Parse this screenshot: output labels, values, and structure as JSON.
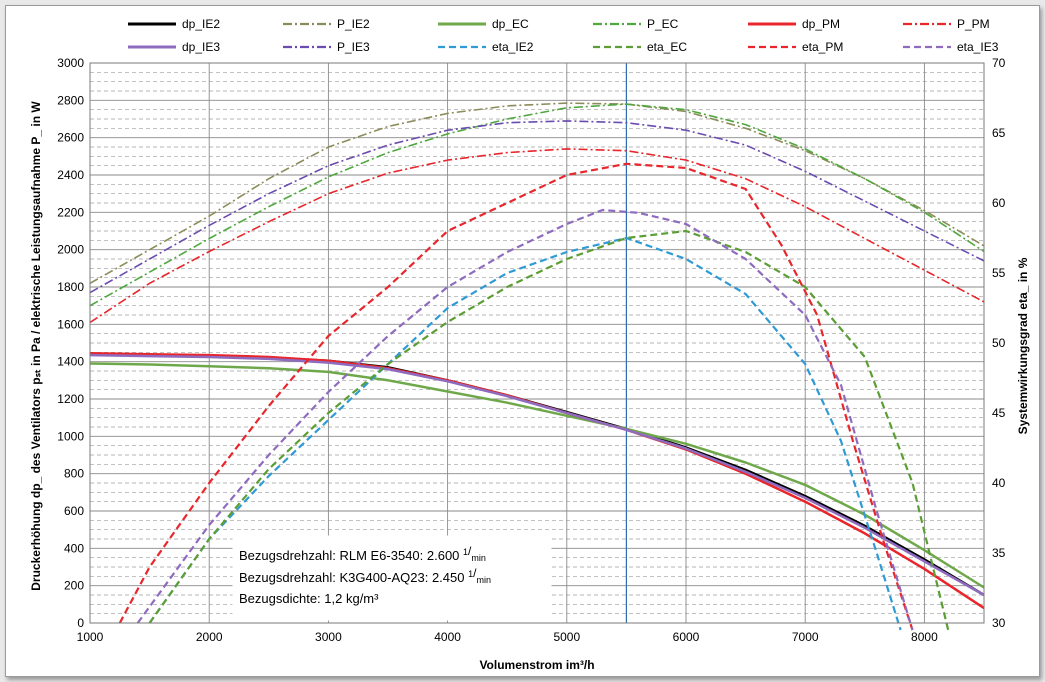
{
  "chart_data": {
    "type": "line",
    "xlabel": "Volumenstrom im³/h",
    "ylabel_left": "Druckerhöhung dp_  des Ventilators pₛₜ in Pa  /  elektrische Leistungsaufnahme P_  in W",
    "ylabel_right": "Systemwirkungsgrad eta_  in %",
    "xlim": [
      1000,
      8500
    ],
    "xticks": [
      "1000",
      "2000",
      "3000",
      "4000",
      "5000",
      "6000",
      "7000",
      "8000"
    ],
    "ylim_left": [
      0,
      3000
    ],
    "yticks_left": [
      "0",
      "200",
      "400",
      "600",
      "800",
      "1000",
      "1200",
      "1400",
      "1600",
      "1800",
      "2000",
      "2200",
      "2400",
      "2600",
      "2800",
      "3000"
    ],
    "ylim_right": [
      30,
      70
    ],
    "yticks_right": [
      "30",
      "35",
      "40",
      "45",
      "50",
      "55",
      "60",
      "65",
      "70"
    ],
    "grid": true,
    "vline_x": 5500,
    "legend_position": "top",
    "annotation": [
      {
        "label": "Bezugsdrehzahl: RLM E6-3540: 2.600 ",
        "frac_num": "1",
        "frac_den": "min"
      },
      {
        "label": "Bezugsdrehzahl: K3G400-AQ23: 2.450 ",
        "frac_num": "1",
        "frac_den": "min"
      },
      {
        "label": "Bezugsdichte:  1,2 kg/m³",
        "frac_num": "",
        "frac_den": ""
      }
    ],
    "series": [
      {
        "name": "dp_IE2",
        "axis": "left",
        "color": "#000000",
        "style": "solid",
        "width": 2.5,
        "x": [
          1000,
          1500,
          2000,
          2500,
          3000,
          3500,
          4000,
          4500,
          5000,
          5500,
          6000,
          6500,
          7000,
          7500,
          8000,
          8500
        ],
        "y": [
          1440,
          1435,
          1430,
          1420,
          1405,
          1370,
          1300,
          1220,
          1130,
          1040,
          940,
          820,
          680,
          520,
          340,
          150
        ]
      },
      {
        "name": "P_IE2",
        "axis": "left",
        "color": "#8c8c5a",
        "style": "dashdot",
        "width": 1.6,
        "x": [
          1000,
          1500,
          2000,
          2500,
          3000,
          3500,
          4000,
          4500,
          5000,
          5500,
          6000,
          6500,
          7000,
          7500,
          8000,
          8500
        ],
        "y": [
          1820,
          2000,
          2180,
          2380,
          2550,
          2660,
          2730,
          2770,
          2785,
          2780,
          2740,
          2650,
          2530,
          2380,
          2210,
          2020
        ]
      },
      {
        "name": "dp_EC",
        "axis": "left",
        "color": "#6fa84b",
        "style": "solid",
        "width": 2.5,
        "x": [
          1000,
          1500,
          2000,
          2500,
          3000,
          3500,
          4000,
          4500,
          5000,
          5500,
          6000,
          6500,
          7000,
          7500,
          8000,
          8500
        ],
        "y": [
          1390,
          1385,
          1375,
          1365,
          1345,
          1300,
          1240,
          1180,
          1110,
          1040,
          960,
          860,
          740,
          580,
          390,
          190
        ]
      },
      {
        "name": "P_EC",
        "axis": "left",
        "color": "#4ea83d",
        "style": "dashdot",
        "width": 1.6,
        "x": [
          1000,
          1500,
          2000,
          2500,
          3000,
          3500,
          4000,
          4500,
          5000,
          5500,
          6000,
          6500,
          7000,
          7500,
          8000,
          8500
        ],
        "y": [
          1700,
          1880,
          2060,
          2230,
          2390,
          2520,
          2620,
          2700,
          2760,
          2780,
          2750,
          2670,
          2540,
          2380,
          2200,
          1990
        ]
      },
      {
        "name": "dp_PM",
        "axis": "left",
        "color": "#e8262b",
        "style": "solid",
        "width": 2.5,
        "x": [
          1000,
          1500,
          2000,
          2500,
          3000,
          3500,
          4000,
          4500,
          5000,
          5500,
          6000,
          6500,
          7000,
          7500,
          8000,
          8500
        ],
        "y": [
          1445,
          1440,
          1435,
          1425,
          1405,
          1365,
          1300,
          1220,
          1125,
          1035,
          930,
          800,
          650,
          480,
          290,
          80
        ]
      },
      {
        "name": "P_PM",
        "axis": "left",
        "color": "#e8262b",
        "style": "dashdot",
        "width": 1.6,
        "x": [
          1000,
          1500,
          2000,
          2500,
          3000,
          3500,
          4000,
          4500,
          5000,
          5500,
          6000,
          6500,
          7000,
          7500,
          8000,
          8500
        ],
        "y": [
          1610,
          1820,
          1990,
          2150,
          2300,
          2410,
          2480,
          2520,
          2540,
          2530,
          2480,
          2380,
          2230,
          2060,
          1890,
          1720
        ]
      },
      {
        "name": "dp_IE3",
        "axis": "left",
        "color": "#8e6bbf",
        "style": "solid",
        "width": 2.5,
        "x": [
          1000,
          1500,
          2000,
          2500,
          3000,
          3500,
          4000,
          4500,
          5000,
          5500,
          6000,
          6500,
          7000,
          7500,
          8000,
          8500
        ],
        "y": [
          1435,
          1430,
          1425,
          1415,
          1395,
          1360,
          1295,
          1215,
          1125,
          1035,
          935,
          810,
          670,
          510,
          330,
          150
        ]
      },
      {
        "name": "P_IE3",
        "axis": "left",
        "color": "#6a4bb0",
        "style": "dashdot",
        "width": 1.6,
        "x": [
          1000,
          1500,
          2000,
          2500,
          3000,
          3500,
          4000,
          4500,
          5000,
          5500,
          6000,
          6500,
          7000,
          7500,
          8000,
          8500
        ],
        "y": [
          1770,
          1950,
          2130,
          2300,
          2450,
          2560,
          2640,
          2680,
          2690,
          2680,
          2640,
          2560,
          2420,
          2260,
          2100,
          1940
        ]
      },
      {
        "name": "eta_IE2",
        "axis": "right",
        "color": "#2e9ad6",
        "style": "dashed",
        "width": 2.2,
        "x": [
          1500,
          2000,
          2500,
          3000,
          3500,
          4000,
          4500,
          5000,
          5500,
          6000,
          6500,
          7000,
          7300,
          7600,
          7800
        ],
        "y": [
          30,
          36,
          40.5,
          44.5,
          48.5,
          52.5,
          55,
          56.5,
          57.5,
          56,
          53.5,
          48.5,
          43,
          35,
          29.5
        ]
      },
      {
        "name": "eta_EC",
        "axis": "right",
        "color": "#5c9e35",
        "style": "dashed",
        "width": 2.2,
        "x": [
          1500,
          2000,
          2500,
          3000,
          3500,
          4000,
          4500,
          5000,
          5500,
          6000,
          6500,
          7000,
          7500,
          7900,
          8200
        ],
        "y": [
          30,
          36,
          41,
          45,
          48.5,
          51.5,
          54,
          56,
          57.5,
          58,
          56.5,
          54,
          49,
          40,
          29.5
        ]
      },
      {
        "name": "eta_PM",
        "axis": "right",
        "color": "#e8262b",
        "style": "dashed",
        "width": 2.2,
        "x": [
          1250,
          1500,
          2000,
          2500,
          3000,
          3500,
          4000,
          4500,
          5000,
          5500,
          6000,
          6500,
          6800,
          7100,
          7400,
          7650,
          7900
        ],
        "y": [
          30,
          34,
          40,
          45.5,
          50.5,
          54,
          58,
          60,
          62,
          62.8,
          62.5,
          61,
          57,
          52,
          43,
          36,
          29.5
        ]
      },
      {
        "name": "eta_IE3",
        "axis": "right",
        "color": "#8e6bbf",
        "style": "dashed",
        "width": 2.2,
        "x": [
          1400,
          2000,
          2500,
          3000,
          3500,
          4000,
          4500,
          5000,
          5300,
          5600,
          6000,
          6500,
          7000,
          7300,
          7600,
          7900
        ],
        "y": [
          30,
          37,
          42,
          46.5,
          50.5,
          54,
          56.5,
          58.5,
          59.5,
          59.3,
          58.5,
          56,
          52,
          47,
          38,
          29.5
        ]
      }
    ]
  }
}
